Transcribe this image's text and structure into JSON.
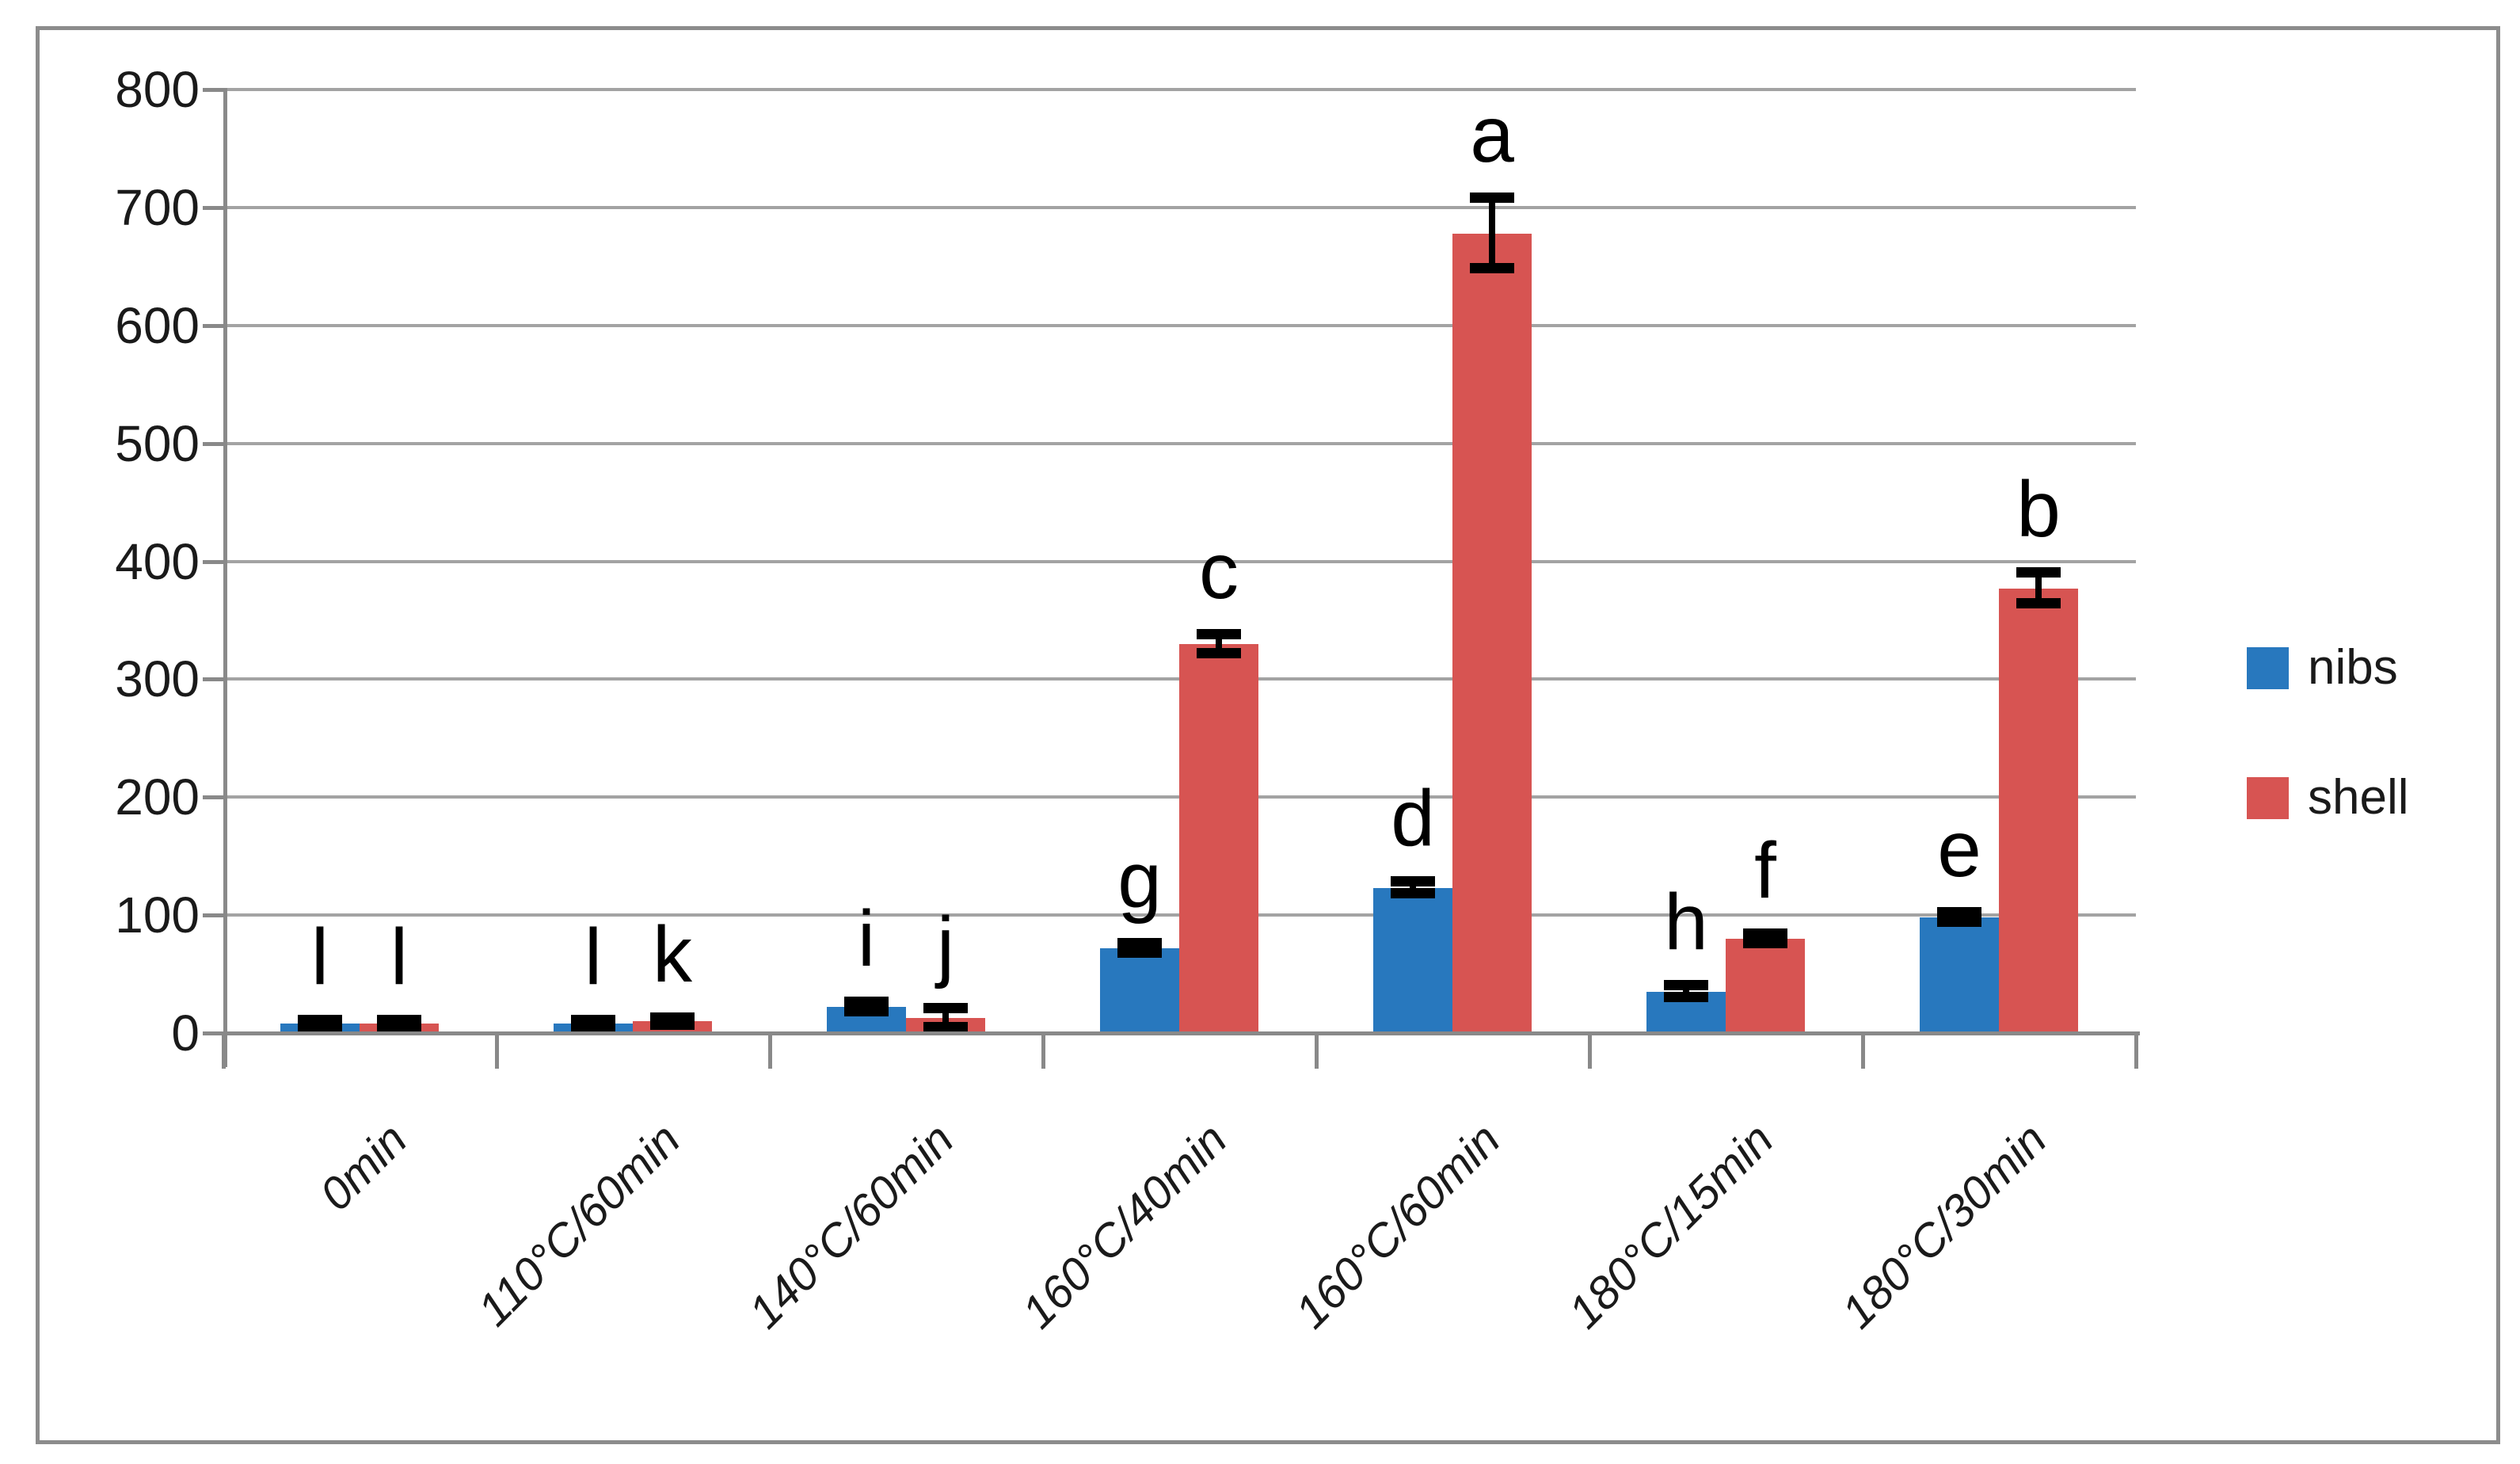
{
  "chart_data": {
    "type": "bar",
    "title": "",
    "xlabel": "",
    "ylabel": "",
    "categories": [
      "0min",
      "110°C/60min",
      "140°C/60min",
      "160°C/40min",
      "160°C/60min",
      "180°C/15min",
      "180°C/30min"
    ],
    "series": [
      {
        "name": "nibs",
        "color": "#2878be",
        "values": [
          8,
          8,
          22,
          72,
          123,
          35,
          98
        ],
        "errors": [
          3,
          3,
          4,
          4,
          5,
          5,
          4
        ],
        "letters": [
          "l",
          "l",
          "i",
          "g",
          "d",
          "h",
          "e"
        ]
      },
      {
        "name": "shell",
        "color": "#d75452",
        "values": [
          8,
          10,
          13,
          330,
          678,
          80,
          377
        ],
        "errors": [
          3,
          3,
          8,
          8,
          30,
          4,
          13
        ],
        "letters": [
          "l",
          "k",
          "j",
          "c",
          "a",
          "f",
          "b"
        ]
      }
    ],
    "ylim": [
      0,
      800
    ],
    "ytick_interval": 100,
    "yticks": [
      "0",
      "100",
      "200",
      "300",
      "400",
      "500",
      "600",
      "700",
      "800"
    ],
    "grid": true,
    "legend_position": "right",
    "error_bars": true,
    "annotation_letters_note": "significance letters shown above each bar"
  },
  "legend": {
    "items": [
      {
        "label": "nibs",
        "color": "#2878be"
      },
      {
        "label": "shell",
        "color": "#d75452"
      }
    ]
  },
  "colors": {
    "gridline": "#a3a3a3",
    "axis": "#898989",
    "frame_border": "#8c8c8c",
    "annotation": "#000000"
  }
}
